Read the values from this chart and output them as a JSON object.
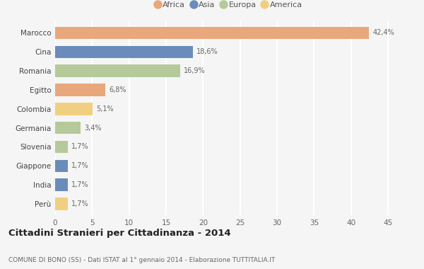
{
  "categories": [
    "Marocco",
    "Cina",
    "Romania",
    "Egitto",
    "Colombia",
    "Germania",
    "Slovenia",
    "Giappone",
    "India",
    "Perù"
  ],
  "values": [
    42.4,
    18.6,
    16.9,
    6.8,
    5.1,
    3.4,
    1.7,
    1.7,
    1.7,
    1.7
  ],
  "labels": [
    "42,4%",
    "18,6%",
    "16,9%",
    "6,8%",
    "5,1%",
    "3,4%",
    "1,7%",
    "1,7%",
    "1,7%",
    "1,7%"
  ],
  "colors": [
    "#e8a87c",
    "#6b8cba",
    "#b5c99a",
    "#e8a87c",
    "#f0d080",
    "#b5c99a",
    "#b5c99a",
    "#6b8cba",
    "#6b8cba",
    "#f0d080"
  ],
  "legend_labels": [
    "Africa",
    "Asia",
    "Europa",
    "America"
  ],
  "legend_colors": [
    "#e8a87c",
    "#6b8cba",
    "#b5c99a",
    "#f0d080"
  ],
  "title": "Cittadini Stranieri per Cittadinanza - 2014",
  "subtitle": "COMUNE DI BONO (SS) - Dati ISTAT al 1° gennaio 2014 - Elaborazione TUTTITALIA.IT",
  "xlim": [
    0,
    47
  ],
  "xticks": [
    0,
    5,
    10,
    15,
    20,
    25,
    30,
    35,
    40,
    45
  ],
  "background_color": "#f5f5f5",
  "grid_color": "#ffffff",
  "bar_height": 0.65
}
